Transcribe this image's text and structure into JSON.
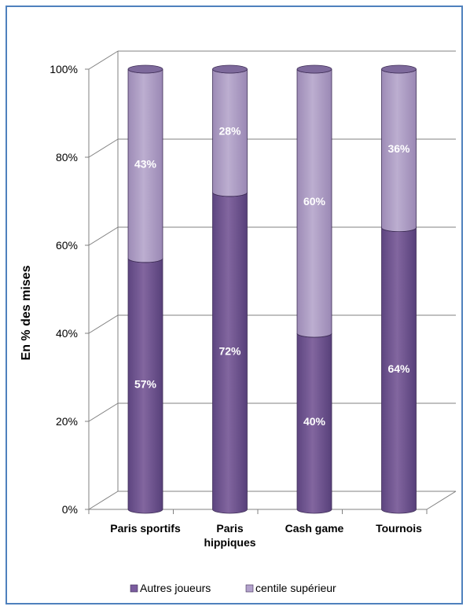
{
  "chart_data": {
    "type": "bar",
    "stacked": true,
    "three_d": true,
    "title": "",
    "xlabel": "",
    "ylabel": "En % des mises",
    "ylim": [
      0,
      100
    ],
    "y_ticks": [
      "0%",
      "20%",
      "40%",
      "60%",
      "80%",
      "100%"
    ],
    "categories": [
      [
        "Paris sportifs"
      ],
      [
        "Paris",
        "hippiques"
      ],
      [
        "Cash game"
      ],
      [
        "Tournois"
      ]
    ],
    "series": [
      {
        "name": "Autres joueurs",
        "values": [
          57,
          72,
          40,
          64
        ],
        "labels": [
          "57%",
          "72%",
          "40%",
          "64%"
        ],
        "color": "#7a5c9e"
      },
      {
        "name": "centile supérieur",
        "values": [
          43,
          28,
          60,
          36
        ],
        "labels": [
          "43%",
          "28%",
          "60%",
          "36%"
        ],
        "color": "#b3a2cc"
      }
    ],
    "grid": true,
    "legend_position": "bottom"
  },
  "legend": {
    "items": [
      {
        "label": "Autres joueurs",
        "color": "#7a5c9e"
      },
      {
        "label": "centile supérieur",
        "color": "#b3a2cc"
      }
    ]
  },
  "colors": {
    "frame": "#4f81bd",
    "grid": "#808080",
    "bar_dark": "#7a5c9e",
    "bar_light": "#b3a2cc"
  }
}
